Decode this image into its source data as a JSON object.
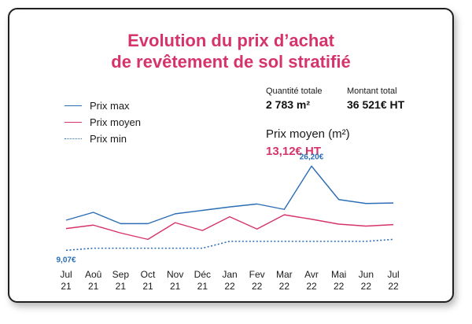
{
  "title": {
    "line1": "Evolution du prix d’achat",
    "line2": "de revêtement de sol stratifié"
  },
  "colors": {
    "accent": "#d6336c",
    "max": "#2a6db5",
    "avg": "#d6336c",
    "min": "#2a6db5"
  },
  "stats": {
    "quantity_label": "Quantité totale",
    "quantity_value": "2 783 m²",
    "amount_label": "Montant total",
    "amount_value": "36 521€ HT",
    "avg_label": "Prix moyen (m²)",
    "avg_value": "13,12€ HT"
  },
  "chart_data": {
    "type": "line",
    "title": "Evolution du prix d’achat de revêtement de sol stratifié",
    "categories": [
      [
        "Jul",
        "21"
      ],
      [
        "Aoû",
        "21"
      ],
      [
        "Sep",
        "21"
      ],
      [
        "Oct",
        "21"
      ],
      [
        "Nov",
        "21"
      ],
      [
        "Déc",
        "21"
      ],
      [
        "Jan",
        "22"
      ],
      [
        "Fev",
        "22"
      ],
      [
        "Mar",
        "22"
      ],
      [
        "Avr",
        "22"
      ],
      [
        "Mai",
        "22"
      ],
      [
        "Jun",
        "22"
      ],
      [
        "Jul",
        "22"
      ]
    ],
    "series": [
      {
        "name": "Prix max",
        "style": "solid",
        "values": [
          15.2,
          16.8,
          14.5,
          14.5,
          16.5,
          17.2,
          17.9,
          18.5,
          17.4,
          26.2,
          19.4,
          18.6,
          18.7
        ]
      },
      {
        "name": "Prix moyen",
        "style": "solid",
        "values": [
          13.5,
          14.2,
          12.6,
          11.3,
          14.7,
          13.1,
          15.9,
          13.4,
          16.3,
          15.4,
          14.4,
          14.0,
          14.3
        ]
      },
      {
        "name": "Prix min",
        "style": "dotted",
        "values": [
          9.07,
          9.5,
          9.5,
          9.5,
          9.5,
          9.5,
          10.9,
          10.9,
          10.9,
          10.9,
          10.9,
          10.9,
          11.3
        ]
      }
    ],
    "annotations": [
      {
        "series": "Prix max",
        "index": 9,
        "label": "26,20€"
      },
      {
        "series": "Prix min",
        "index": 0,
        "label": "9,07€"
      }
    ],
    "xlabel": "",
    "ylabel": "",
    "ylim": [
      4,
      28
    ],
    "grid": false,
    "legend": "top-left"
  }
}
